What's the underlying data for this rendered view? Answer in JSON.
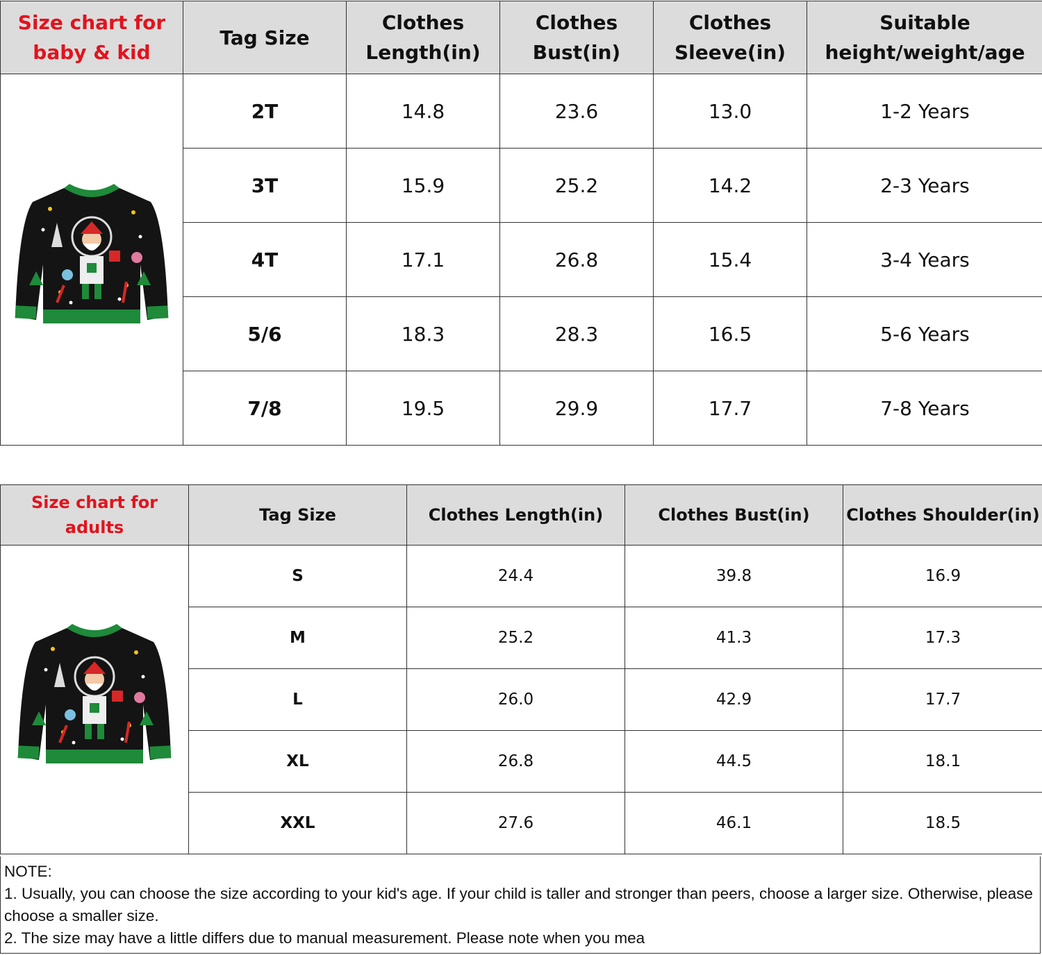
{
  "kid_chart": {
    "title": "Size chart  for baby & kid",
    "headers": [
      "Tag Size",
      "Clothes Length(in)",
      "Clothes Bust(in)",
      "Clothes Sleeve(in)",
      "Suitable height/weight/age"
    ],
    "rows": [
      [
        "2T",
        "14.8",
        "23.6",
        "13.0",
        "1-2 Years"
      ],
      [
        "3T",
        "15.9",
        "25.2",
        "14.2",
        "2-3 Years"
      ],
      [
        "4T",
        "17.1",
        "26.8",
        "15.4",
        "3-4 Years"
      ],
      [
        "5/6",
        "18.3",
        "28.3",
        "16.5",
        "5-6 Years"
      ],
      [
        "7/8",
        "19.5",
        "29.9",
        "17.7",
        "7-8 Years"
      ]
    ],
    "image_icon": "christmas-sweater-image"
  },
  "adult_chart": {
    "title": "Size chart for adults",
    "headers": [
      "Tag Size",
      "Clothes Length(in)",
      "Clothes Bust(in)",
      "Clothes Shoulder(in)"
    ],
    "rows": [
      [
        "S",
        "24.4",
        "39.8",
        "16.9"
      ],
      [
        "M",
        "25.2",
        "41.3",
        "17.3"
      ],
      [
        "L",
        "26.0",
        "42.9",
        "17.7"
      ],
      [
        "XL",
        "26.8",
        "44.5",
        "18.1"
      ],
      [
        "XXL",
        "27.6",
        "46.1",
        "18.5"
      ]
    ],
    "image_icon": "christmas-sweater-image"
  },
  "note": {
    "heading": "NOTE:",
    "line1": "1. Usually, you can choose the size according to your kid's age. If your child is taller and stronger than peers, choose a larger size. Otherwise, please choose a smaller size.",
    "line2": "2. The size may have a little differs due to manual measurement. Please note when you mea"
  },
  "colors": {
    "title_red": "#e0141e",
    "header_bg": "#dcdcdc",
    "sweater_green": "#1e8a3a"
  }
}
